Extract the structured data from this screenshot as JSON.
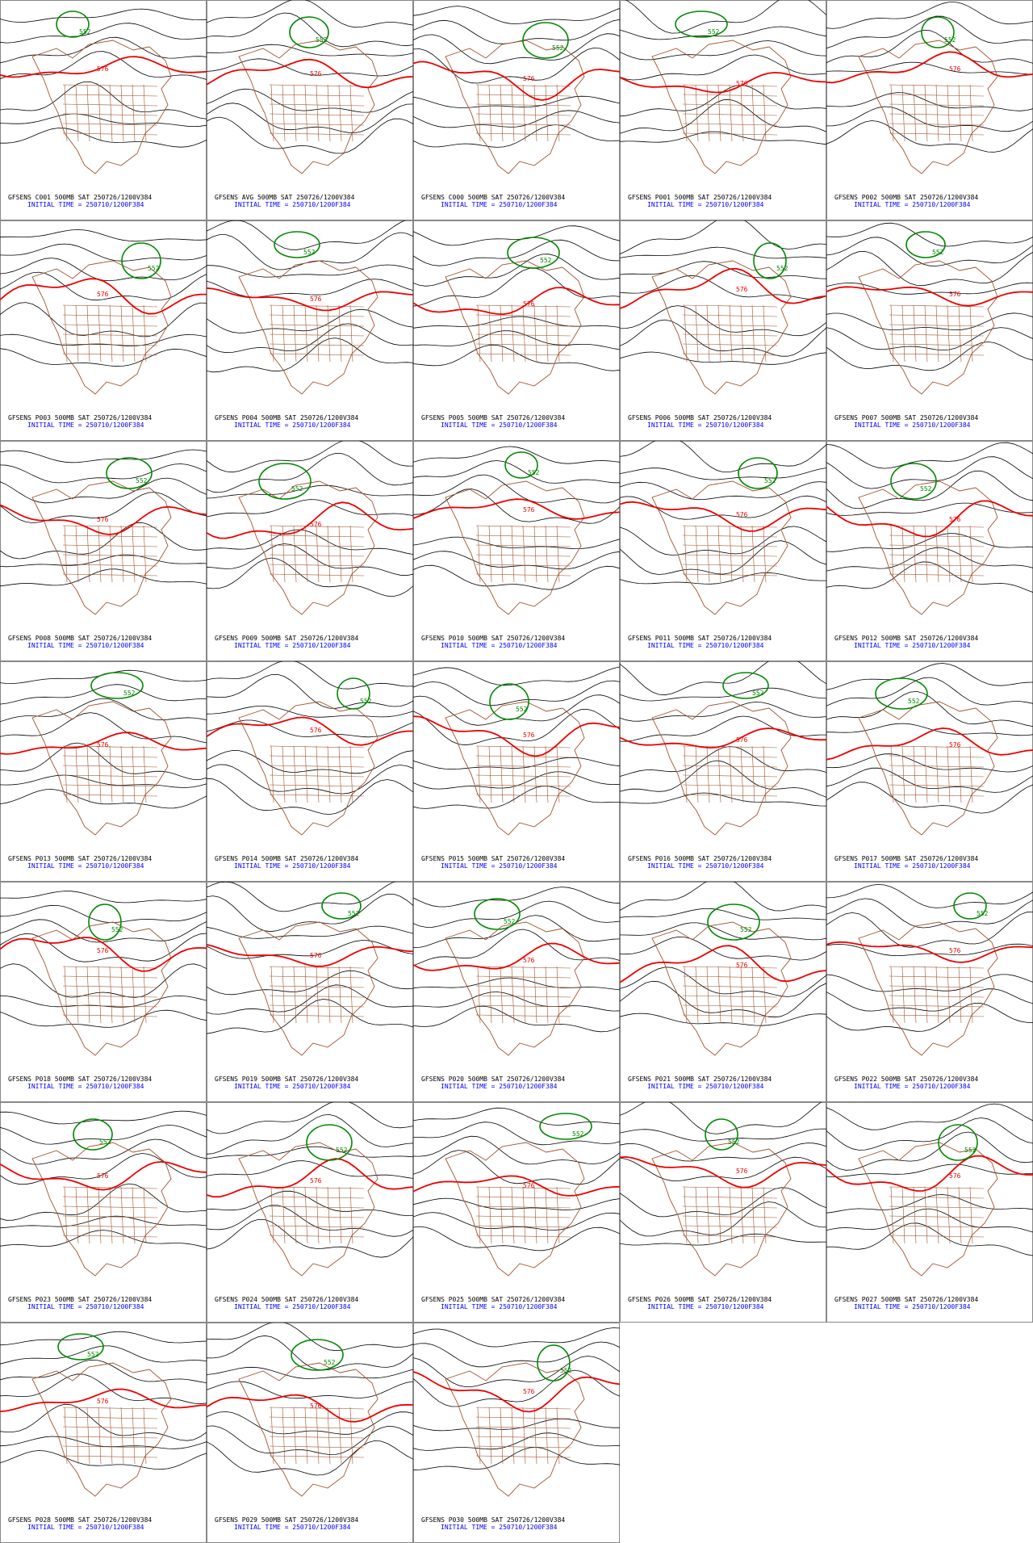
{
  "contour_labels": {
    "red": "576",
    "green": "552"
  },
  "panels": [
    {
      "title": "GFSENS C001 500MB SAT 250726/1200V384",
      "initial": "INITIAL TIME = 250710/1200F384"
    },
    {
      "title": "GFSENS AVG 500MB SAT 250726/1200V384",
      "initial": "INITIAL TIME = 250710/1200F384"
    },
    {
      "title": "GFSENS C000 500MB SAT 250726/1200V384",
      "initial": "INITIAL TIME = 250710/1200F384"
    },
    {
      "title": "GFSENS P001 500MB SAT 250726/1200V384",
      "initial": "INITIAL TIME = 250710/1200F384"
    },
    {
      "title": "GFSENS P002 500MB SAT 250726/1200V384",
      "initial": "INITIAL TIME = 250710/1200F384"
    },
    {
      "title": "GFSENS P003 500MB SAT 250726/1200V384",
      "initial": "INITIAL TIME = 250710/1200F384"
    },
    {
      "title": "GFSENS P004 500MB SAT 250726/1200V384",
      "initial": "INITIAL TIME = 250710/1200F384"
    },
    {
      "title": "GFSENS P005 500MB SAT 250726/1200V384",
      "initial": "INITIAL TIME = 250710/1200F384"
    },
    {
      "title": "GFSENS P006 500MB SAT 250726/1200V384",
      "initial": "INITIAL TIME = 250710/1200F384"
    },
    {
      "title": "GFSENS P007 500MB SAT 250726/1200V384",
      "initial": "INITIAL TIME = 250710/1200F384"
    },
    {
      "title": "GFSENS P008 500MB SAT 250726/1200V384",
      "initial": "INITIAL TIME = 250710/1200F384"
    },
    {
      "title": "GFSENS P009 500MB SAT 250726/1200V384",
      "initial": "INITIAL TIME = 250710/1200F384"
    },
    {
      "title": "GFSENS P010 500MB SAT 250726/1200V384",
      "initial": "INITIAL TIME = 250710/1200F384"
    },
    {
      "title": "GFSENS P011 500MB SAT 250726/1200V384",
      "initial": "INITIAL TIME = 250710/1200F384"
    },
    {
      "title": "GFSENS P012 500MB SAT 250726/1200V384",
      "initial": "INITIAL TIME = 250710/1200F384"
    },
    {
      "title": "GFSENS P013 500MB SAT 250726/1200V384",
      "initial": "INITIAL TIME = 250710/1200F384"
    },
    {
      "title": "GFSENS P014 500MB SAT 250726/1200V384",
      "initial": "INITIAL TIME = 250710/1200F384"
    },
    {
      "title": "GFSENS P015 500MB SAT 250726/1200V384",
      "initial": "INITIAL TIME = 250710/1200F384"
    },
    {
      "title": "GFSENS P016 500MB SAT 250726/1200V384",
      "initial": "INITIAL TIME = 250710/1200F384"
    },
    {
      "title": "GFSENS P017 500MB SAT 250726/1200V384",
      "initial": "INITIAL TIME = 250710/1200F384"
    },
    {
      "title": "GFSENS P018 500MB SAT 250726/1200V384",
      "initial": "INITIAL TIME = 250710/1200F384"
    },
    {
      "title": "GFSENS P019 500MB SAT 250726/1200V384",
      "initial": "INITIAL TIME = 250710/1200F384"
    },
    {
      "title": "GFSENS P020 500MB SAT 250726/1200V384",
      "initial": "INITIAL TIME = 250710/1200F384"
    },
    {
      "title": "GFSENS P021 500MB SAT 250726/1200V384",
      "initial": "INITIAL TIME = 250710/1200F384"
    },
    {
      "title": "GFSENS P022 500MB SAT 250726/1200V384",
      "initial": "INITIAL TIME = 250710/1200F384"
    },
    {
      "title": "GFSENS P023 500MB SAT 250726/1200V384",
      "initial": "INITIAL TIME = 250710/1200F384"
    },
    {
      "title": "GFSENS P024 500MB SAT 250726/1200V384",
      "initial": "INITIAL TIME = 250710/1200F384"
    },
    {
      "title": "GFSENS P025 500MB SAT 250726/1200V384",
      "initial": "INITIAL TIME = 250710/1200F384"
    },
    {
      "title": "GFSENS P026 500MB SAT 250726/1200V384",
      "initial": "INITIAL TIME = 250710/1200F384"
    },
    {
      "title": "GFSENS P027 500MB SAT 250726/1200V384",
      "initial": "INITIAL TIME = 250710/1200F384"
    },
    {
      "title": "GFSENS P028 500MB SAT 250726/1200V384",
      "initial": "INITIAL TIME = 250710/1200F384"
    },
    {
      "title": "GFSENS P029 500MB SAT 250726/1200V384",
      "initial": "INITIAL TIME = 250710/1200F384"
    },
    {
      "title": "GFSENS P030 500MB SAT 250726/1200V384",
      "initial": "INITIAL TIME = 250710/1200F384"
    }
  ]
}
